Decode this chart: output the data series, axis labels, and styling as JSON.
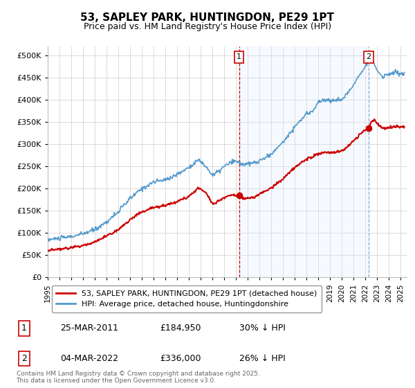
{
  "title": "53, SAPLEY PARK, HUNTINGDON, PE29 1PT",
  "subtitle": "Price paid vs. HM Land Registry's House Price Index (HPI)",
  "red_label": "53, SAPLEY PARK, HUNTINGDON, PE29 1PT (detached house)",
  "blue_label": "HPI: Average price, detached house, Huntingdonshire",
  "annotation1_label": "1",
  "annotation1_date": "25-MAR-2011",
  "annotation1_price": "£184,950",
  "annotation1_pct": "30% ↓ HPI",
  "annotation2_label": "2",
  "annotation2_date": "04-MAR-2022",
  "annotation2_price": "£336,000",
  "annotation2_pct": "26% ↓ HPI",
  "footer": "Contains HM Land Registry data © Crown copyright and database right 2025.\nThis data is licensed under the Open Government Licence v3.0.",
  "red_color": "#cc0000",
  "blue_color": "#5599cc",
  "vline1_color": "#cc0000",
  "vline2_color": "#88aacc",
  "shade_color": "#ddeeff",
  "grid_color": "#cccccc",
  "bg_color": "#ffffff",
  "ylim": [
    0,
    520000
  ],
  "yticks": [
    0,
    50000,
    100000,
    150000,
    200000,
    250000,
    300000,
    350000,
    400000,
    450000,
    500000
  ],
  "xlim_start": 1995.0,
  "xlim_end": 2025.5,
  "sale1_x": 2011.25,
  "sale1_y": 184950,
  "sale2_x": 2022.25,
  "sale2_y": 336000
}
